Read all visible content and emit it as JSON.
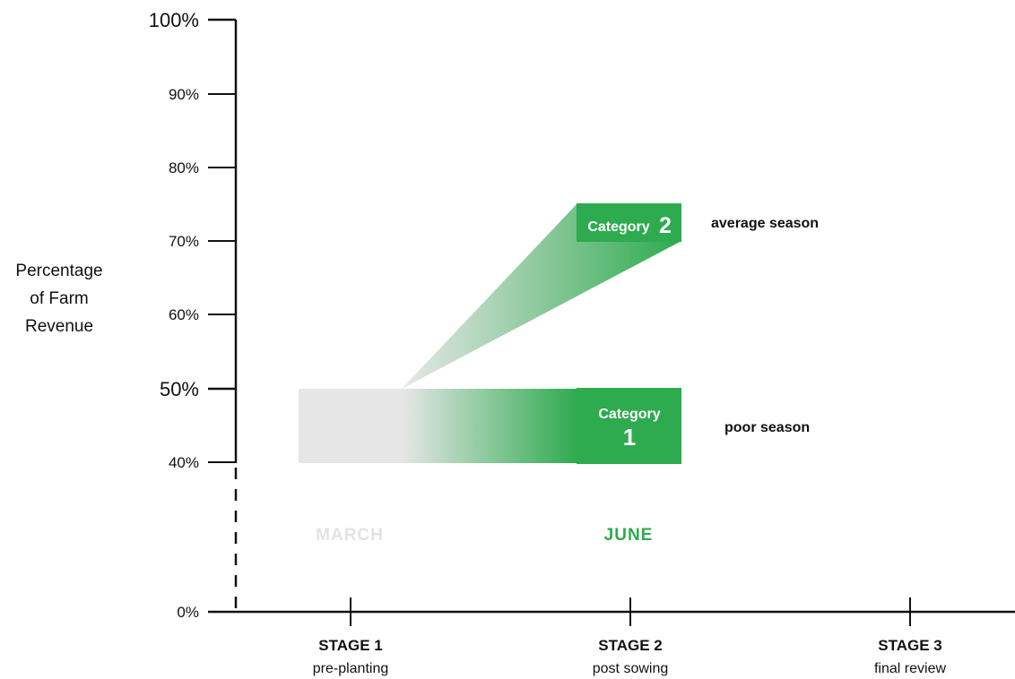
{
  "chart_data": {
    "type": "diagram",
    "ylabel": [
      "Percentage",
      "of Farm",
      "Revenue"
    ],
    "y_ticks": [
      {
        "label": "100%",
        "value": 100,
        "emphasis": true
      },
      {
        "label": "90%",
        "value": 90,
        "emphasis": false
      },
      {
        "label": "80%",
        "value": 80,
        "emphasis": false
      },
      {
        "label": "70%",
        "value": 70,
        "emphasis": false
      },
      {
        "label": "60%",
        "value": 60,
        "emphasis": false
      },
      {
        "label": "50%",
        "value": 50,
        "emphasis": true
      },
      {
        "label": "40%",
        "value": 40,
        "emphasis": false
      },
      {
        "label": "0%",
        "value": 0,
        "emphasis": false
      }
    ],
    "stages": [
      {
        "title": "STAGE 1",
        "subtitle": "pre-planting"
      },
      {
        "title": "STAGE 2",
        "subtitle": "post sowing"
      },
      {
        "title": "STAGE 3",
        "subtitle": "final review"
      }
    ],
    "months": [
      {
        "label": "MARCH",
        "color": "#e3e3e3"
      },
      {
        "label": "JUNE",
        "color": "#2eaa4f"
      }
    ],
    "categories": [
      {
        "word": "Category",
        "number": "1",
        "range": [
          40,
          50
        ],
        "description": "poor season"
      },
      {
        "word": "Category",
        "number": "2",
        "range": [
          70,
          75
        ],
        "description": "average season"
      }
    ],
    "colors": {
      "accent": "#2eaa4f",
      "baseline_band": "#e6e6e6",
      "axis": "#111111"
    }
  }
}
